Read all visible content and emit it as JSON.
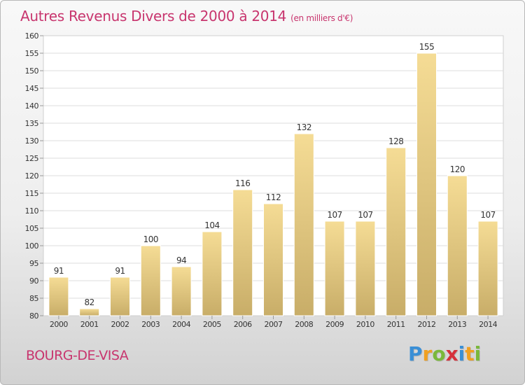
{
  "chart_data": {
    "type": "bar",
    "title": "Autres Revenus Divers de 2000 à 2014",
    "subtitle": "(en milliers d'€)",
    "categories": [
      "2000",
      "2001",
      "2002",
      "2003",
      "2004",
      "2005",
      "2006",
      "2007",
      "2008",
      "2009",
      "2010",
      "2011",
      "2012",
      "2013",
      "2014"
    ],
    "values": [
      91,
      82,
      91,
      100,
      94,
      104,
      116,
      112,
      132,
      107,
      107,
      128,
      155,
      120,
      107
    ],
    "ylim": [
      80,
      160
    ],
    "yticks": [
      80,
      85,
      90,
      95,
      100,
      105,
      110,
      115,
      120,
      125,
      130,
      135,
      140,
      145,
      150,
      155,
      160
    ],
    "grid": true,
    "legend": "none",
    "bar_color_top": "#f5dc95",
    "bar_color_bottom": "#c8ad68"
  },
  "footer": {
    "city": "BOURG-DE-VISA",
    "logo_letters": [
      "P",
      "r",
      "o",
      "x",
      "i",
      "t",
      "i"
    ],
    "logo_colors": [
      "#3a8fd6",
      "#f0a020",
      "#7ab83a",
      "#d6303a",
      "#3a8fd6",
      "#f0a020",
      "#7ab83a"
    ]
  }
}
